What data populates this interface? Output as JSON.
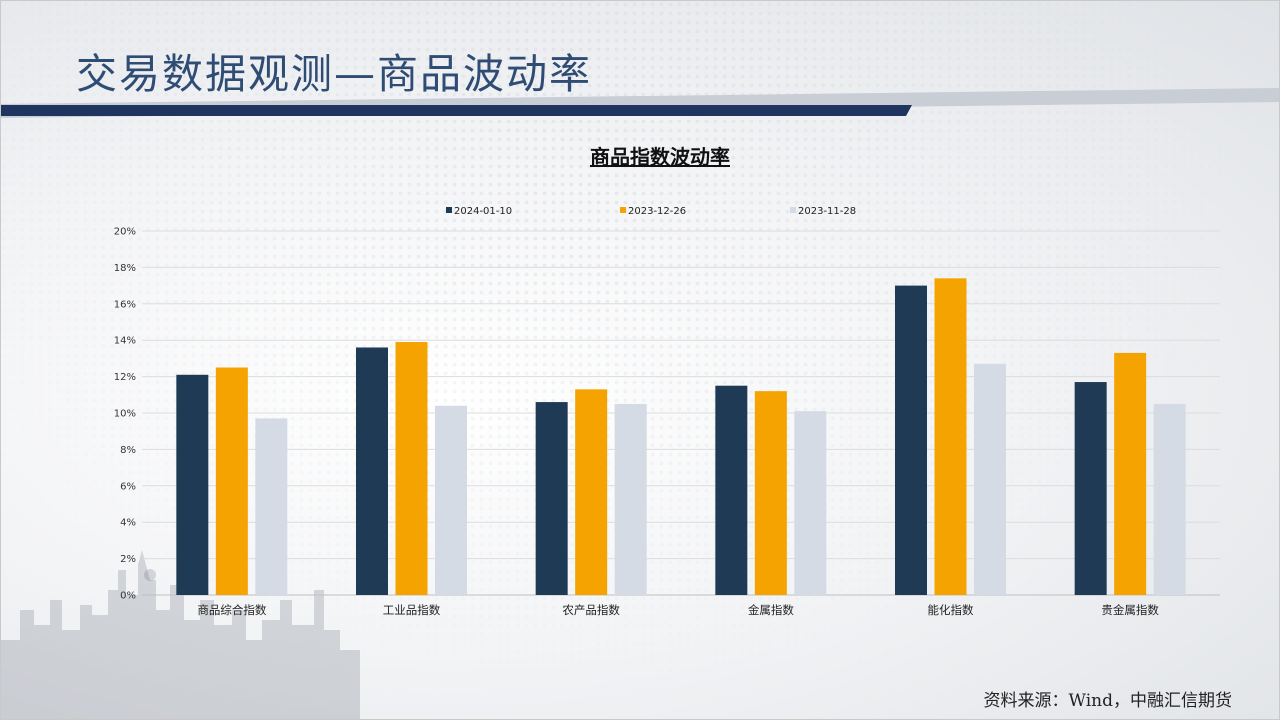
{
  "page": {
    "title": "交易数据观测—商品波动率",
    "source": "资料来源：Wind，中融汇信期货"
  },
  "colors": {
    "title": "#2f4d74",
    "band": "#1f3560",
    "band_light": "#c8cdd6"
  },
  "chart_data": {
    "type": "bar",
    "title": "商品指数波动率",
    "categories": [
      "商品综合指数",
      "工业品指数",
      "农产品指数",
      "金属指数",
      "能化指数",
      "贵金属指数"
    ],
    "series": [
      {
        "name": "2024-01-10",
        "color": "#1f3a55",
        "values": [
          12.1,
          13.6,
          10.6,
          11.5,
          17.0,
          11.7
        ]
      },
      {
        "name": "2023-12-26",
        "color": "#f5a300",
        "values": [
          12.5,
          13.9,
          11.3,
          11.2,
          17.4,
          13.3
        ]
      },
      {
        "name": "2023-11-28",
        "color": "#d5dbe4",
        "values": [
          9.7,
          10.4,
          10.5,
          10.1,
          12.7,
          10.5
        ]
      }
    ],
    "ylim": [
      0,
      20
    ],
    "yticks": [
      "0%",
      "2%",
      "4%",
      "6%",
      "8%",
      "10%",
      "12%",
      "14%",
      "16%",
      "18%",
      "20%"
    ],
    "grid": true,
    "legend": "top"
  }
}
